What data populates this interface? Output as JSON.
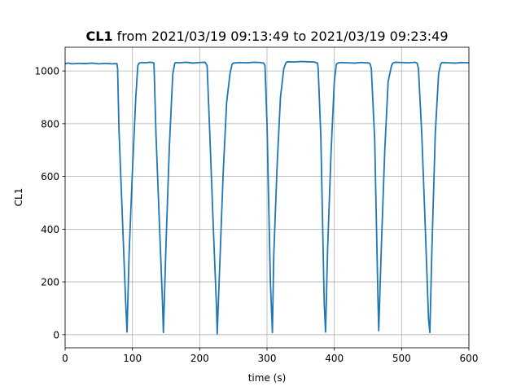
{
  "chart_data": {
    "type": "line",
    "title_bold": "CL1",
    "title_rest": " from 2021/03/19 09:13:49 to 2021/03/19 09:23:49",
    "xlabel": "time (s)",
    "ylabel": "CL1",
    "xlim": [
      0,
      600
    ],
    "ylim": [
      -50,
      1090
    ],
    "xticks": [
      0,
      100,
      200,
      300,
      400,
      500,
      600
    ],
    "yticks": [
      0,
      200,
      400,
      600,
      800,
      1000
    ],
    "grid": true,
    "line_color": "#1f77b4",
    "series": [
      {
        "x": [
          0,
          5,
          10,
          20,
          30,
          40,
          50,
          60,
          70,
          77,
          78,
          80,
          85,
          90,
          92,
          95,
          100,
          105,
          108,
          110,
          115,
          120,
          125,
          130,
          132,
          135,
          140,
          145,
          146,
          150,
          155,
          160,
          163,
          165,
          170,
          180,
          190,
          200,
          208,
          211,
          215,
          220,
          225,
          226,
          230,
          235,
          240,
          245,
          248,
          250,
          260,
          270,
          280,
          290,
          295,
          297,
          300,
          305,
          308,
          310,
          315,
          320,
          325,
          328,
          330,
          340,
          350,
          360,
          370,
          375,
          376,
          380,
          385,
          387,
          390,
          395,
          400,
          403,
          405,
          410,
          420,
          430,
          440,
          450,
          453,
          455,
          460,
          465,
          466,
          470,
          475,
          480,
          485,
          487,
          490,
          500,
          510,
          520,
          523,
          525,
          530,
          535,
          540,
          542,
          545,
          550,
          555,
          558,
          560,
          570,
          580,
          590,
          600
        ],
        "y": [
          1028,
          1030,
          1027,
          1029,
          1028,
          1030,
          1027,
          1029,
          1027,
          1028,
          1010,
          780,
          450,
          120,
          10,
          300,
          620,
          900,
          1020,
          1030,
          1032,
          1031,
          1033,
          1032,
          1030,
          760,
          430,
          100,
          8,
          350,
          720,
          990,
          1030,
          1032,
          1031,
          1033,
          1030,
          1032,
          1033,
          1020,
          760,
          420,
          100,
          3,
          280,
          620,
          880,
          990,
          1025,
          1030,
          1032,
          1031,
          1033,
          1032,
          1030,
          1020,
          800,
          200,
          8,
          300,
          640,
          900,
          1010,
          1030,
          1035,
          1034,
          1036,
          1035,
          1034,
          1030,
          1010,
          750,
          120,
          10,
          320,
          680,
          960,
          1025,
          1030,
          1032,
          1031,
          1030,
          1032,
          1031,
          1028,
          1010,
          740,
          120,
          15,
          340,
          700,
          960,
          1020,
          1030,
          1033,
          1032,
          1031,
          1033,
          1030,
          1010,
          760,
          420,
          60,
          8,
          320,
          760,
          990,
          1025,
          1032,
          1031,
          1030,
          1032,
          1031
        ]
      }
    ]
  }
}
